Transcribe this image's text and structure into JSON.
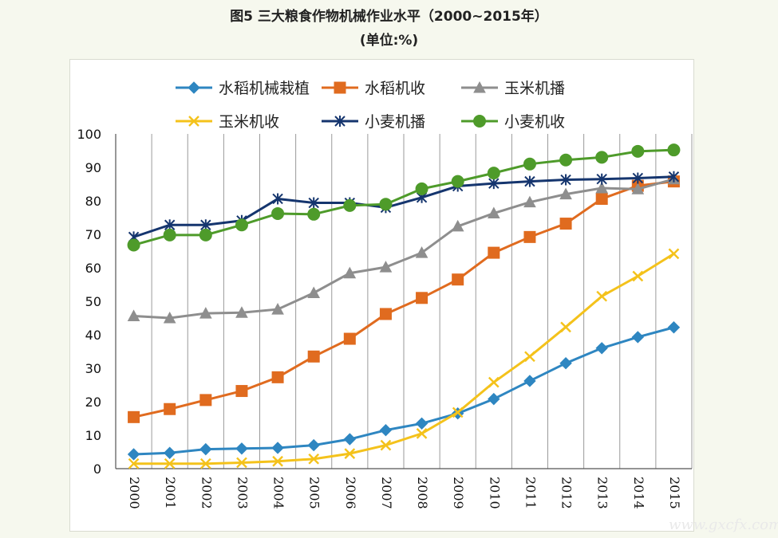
{
  "title": "图5 三大粮食作物机械作业水平（2000~2015年）",
  "subtitle": "(单位:%)",
  "watermark": "www.gxcfx.com",
  "chart_data": {
    "type": "line",
    "categories": [
      "2000",
      "2001",
      "2002",
      "2003",
      "2004",
      "2005",
      "2006",
      "2007",
      "2008",
      "2009",
      "2010",
      "2011",
      "2012",
      "2013",
      "2014",
      "2015"
    ],
    "ylim": [
      0,
      100
    ],
    "yticks": [
      0,
      10,
      20,
      30,
      40,
      50,
      60,
      70,
      80,
      90,
      100
    ],
    "xlabel": "",
    "ylabel": "",
    "grid": "vertical",
    "legend_position": "top",
    "series": [
      {
        "name": "水稻机械栽植",
        "color": "#2e86c1",
        "marker": "diamond",
        "values": [
          4.3,
          4.7,
          5.8,
          6.0,
          6.2,
          7.0,
          8.8,
          11.5,
          13.5,
          16.5,
          20.8,
          26.2,
          31.5,
          36.0,
          39.3,
          42.2
        ]
      },
      {
        "name": "水稻机收",
        "color": "#e06b1f",
        "marker": "square",
        "values": [
          15.4,
          17.8,
          20.5,
          23.2,
          27.3,
          33.5,
          38.8,
          46.2,
          51.0,
          56.5,
          64.5,
          69.2,
          73.2,
          80.6,
          84.5,
          85.8
        ]
      },
      {
        "name": "玉米机播",
        "color": "#8e8e8e",
        "marker": "triangle",
        "values": [
          45.6,
          45.0,
          46.4,
          46.6,
          47.6,
          52.5,
          58.4,
          60.2,
          64.5,
          72.4,
          76.3,
          79.6,
          82.0,
          83.8,
          83.5,
          86.5
        ]
      },
      {
        "name": "玉米机收",
        "color": "#f4c21b",
        "marker": "x",
        "values": [
          1.5,
          1.5,
          1.5,
          1.8,
          2.2,
          2.9,
          4.5,
          7.0,
          10.5,
          16.8,
          25.8,
          33.5,
          42.3,
          51.5,
          57.5,
          64.2
        ]
      },
      {
        "name": "小麦机播",
        "color": "#15356e",
        "marker": "star",
        "values": [
          69.2,
          72.8,
          72.8,
          74.1,
          80.6,
          79.4,
          79.4,
          78.0,
          81.0,
          84.4,
          85.2,
          85.8,
          86.3,
          86.5,
          86.8,
          87.2
        ]
      },
      {
        "name": "小麦机收",
        "color": "#4e9b2a",
        "marker": "circle",
        "values": [
          66.8,
          69.8,
          69.8,
          72.8,
          76.2,
          76.0,
          78.6,
          79.0,
          83.6,
          85.8,
          88.3,
          91.0,
          92.2,
          93.0,
          94.8,
          95.2
        ]
      }
    ]
  }
}
